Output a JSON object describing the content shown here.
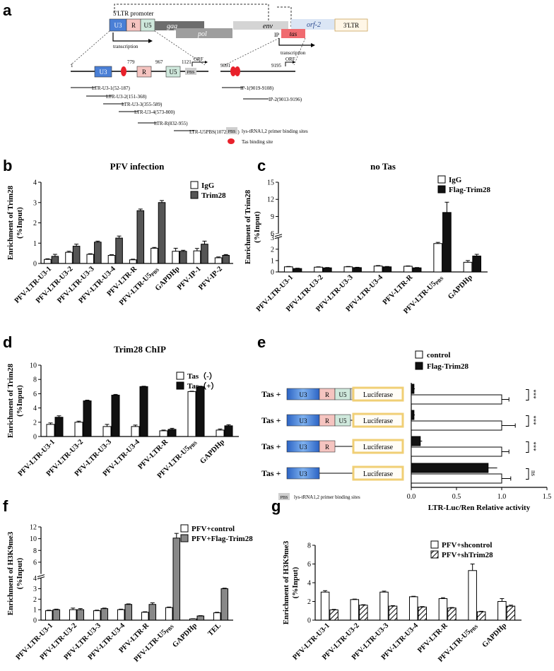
{
  "panel_letters": [
    "a",
    "b",
    "c",
    "d",
    "e",
    "f",
    "g"
  ],
  "schematic": {
    "promoter_label": "5'LTR promoter",
    "genome_segments": [
      "U3",
      "R",
      "U5",
      "gag",
      "pol",
      "env",
      "orf-2",
      "3'LTR",
      "IP",
      "tas"
    ],
    "transcription_label": "transcription",
    "orf_label": "ORF",
    "ltr_positions": [
      "1",
      "779",
      "967",
      "1121"
    ],
    "ip_positions": [
      "9091",
      "9195"
    ],
    "pbs_label": "PBS",
    "fragments": [
      "LTR-U3-1(52-187)",
      "LTR-U3-2(151-368)",
      "LTR-U3-3(355-589)",
      "LTR-U3-4(573-800)",
      "LTR-R(832-955)",
      "LTR-U5PBS(1072-1167)"
    ],
    "ip_fragments": [
      "IP-1(9019-9108)",
      "IP-2(9013-9196)"
    ],
    "legend_pbs": "lys-tRNA1,2 primer binding sites",
    "legend_tas": "Tas binding site",
    "colors": {
      "U3": "#4a7fd6",
      "R": "#f5c4c0",
      "U5": "#cfe8dc",
      "tas_site": "#e8212b",
      "gag": "#6d6d6d",
      "pol": "#9e9e9e",
      "env": "#d4d4d4",
      "tas": "#f06b70",
      "orf2": "#dbe6f5",
      "ltr3": "#fff6e6"
    }
  },
  "chart_data": [
    {
      "panel": "b",
      "type": "bar",
      "title": "PFV infection",
      "ylabel": "Enrichment of Trim28 (%Input)",
      "ylim": [
        0,
        4
      ],
      "yticks": [
        "0",
        "1",
        "2",
        "3",
        "4"
      ],
      "categories": [
        "PFV-LTR-U3-1",
        "PFV-LTR-U3-2",
        "PFV-LTR-U3-3",
        "PFV-LTR-U3-4",
        "PFV-LTR-R",
        "PFV-LTR-U5PBS",
        "GAPDHp",
        "PFV-IP-1",
        "PFV-IP-2"
      ],
      "series": [
        {
          "name": "IgG",
          "color": "#ffffff",
          "values": [
            0.2,
            0.55,
            0.45,
            0.4,
            0.18,
            0.75,
            0.6,
            0.62,
            0.28
          ],
          "errors": [
            0.03,
            0.05,
            0.03,
            0.03,
            0.03,
            0.04,
            0.15,
            0.12,
            0.04
          ]
        },
        {
          "name": "Trim28",
          "color": "#555555",
          "values": [
            0.35,
            0.85,
            1.05,
            1.25,
            2.6,
            3.0,
            0.6,
            0.95,
            0.4
          ],
          "errors": [
            0.1,
            0.1,
            0.05,
            0.1,
            0.08,
            0.1,
            0.05,
            0.15,
            0.04
          ]
        }
      ]
    },
    {
      "panel": "c",
      "type": "bar",
      "title": "no Tas",
      "ylabel": "Enrichment of Trim28 (%Input)",
      "ylim": [
        0,
        15
      ],
      "yticks": [
        "0",
        "1",
        "2",
        "3",
        "6",
        "9",
        "12",
        "15"
      ],
      "categories": [
        "PFV-LTR-U3-1",
        "PFV-LTR-U3-2",
        "PFV-LTR-U3-3",
        "PFV-LTR-U3-4",
        "PFV-LTR-R",
        "PFV-LTR-U5PBS",
        "GAPDHp"
      ],
      "series": [
        {
          "name": "IgG",
          "color": "#ffffff",
          "values": [
            0.45,
            0.42,
            0.45,
            0.52,
            0.5,
            2.5,
            0.85
          ],
          "errors": [
            0.03,
            0.03,
            0.03,
            0.04,
            0.03,
            0.1,
            0.15
          ]
        },
        {
          "name": "Flag-Trim28",
          "color": "#111111",
          "values": [
            0.3,
            0.36,
            0.38,
            0.45,
            0.36,
            9.7,
            1.4
          ],
          "errors": [
            0.03,
            0.03,
            0.03,
            0.03,
            0.03,
            1.8,
            0.15
          ]
        }
      ]
    },
    {
      "panel": "d",
      "type": "bar",
      "title": "Trim28 ChIP",
      "ylabel": "Enrichment of Trim28 (%Input)",
      "ylim": [
        0,
        10
      ],
      "yticks": [
        "0",
        "2",
        "4",
        "6",
        "8",
        "10"
      ],
      "categories": [
        "PFV-LTR-U3-1",
        "PFV-LTR-U3-2",
        "PFV-LTR-U3-3",
        "PFV-LTR-U3-4",
        "PFV-LTR-R",
        "PFV-LTR-U5PBS",
        "GAPDHp"
      ],
      "series": [
        {
          "name": "Tas（-）",
          "color": "#ffffff",
          "values": [
            1.7,
            2.0,
            1.4,
            1.4,
            0.8,
            6.3,
            0.9
          ],
          "errors": [
            0.2,
            0.15,
            0.3,
            0.2,
            0.1,
            0.05,
            0.15
          ]
        },
        {
          "name": "Tas（+）",
          "color": "#111111",
          "values": [
            2.7,
            5.0,
            5.8,
            7.0,
            1.0,
            7.0,
            1.5
          ],
          "errors": [
            0.2,
            0.1,
            0.1,
            0.05,
            0.15,
            0.05,
            0.15
          ]
        }
      ]
    },
    {
      "panel": "e",
      "type": "bar",
      "orientation": "horizontal",
      "xlabel": "LTR-Luc/Ren Relative activity",
      "xlim": [
        0,
        1.5
      ],
      "xticks": [
        "0.0",
        "0.5",
        "1.0",
        "1.5"
      ],
      "row_prefix": "Tas +",
      "reporter_label": "Luciferase",
      "constructs": [
        [
          "U3",
          "R",
          "U5",
          "PBS"
        ],
        [
          "U3",
          "R",
          "U5"
        ],
        [
          "U3",
          "R"
        ],
        [
          "U3"
        ]
      ],
      "series": [
        {
          "name": "control",
          "color": "#ffffff",
          "values": [
            1.0,
            1.0,
            1.0,
            1.0
          ],
          "errors": [
            0.08,
            0.15,
            0.08,
            0.1
          ]
        },
        {
          "name": "Flag-Trim28",
          "color": "#111111",
          "values": [
            0.03,
            0.03,
            0.1,
            0.85
          ],
          "errors": [
            0.01,
            0.01,
            0.02,
            0.1
          ]
        }
      ],
      "significance": [
        "***",
        "***",
        "***",
        "ns"
      ],
      "legend_pbs": "lys-tRNA1,2 primer binding sites"
    },
    {
      "panel": "f",
      "type": "bar",
      "ylabel": "Enrichment of H3K9me3 (%Input)",
      "ylim": [
        0,
        12
      ],
      "yticks": [
        "0",
        "1",
        "2",
        "3",
        "4",
        "6",
        "8",
        "10",
        "12"
      ],
      "categories": [
        "PFV-LTR-U3-1",
        "PFV-LTR-U3-2",
        "PFV-LTR-U3-3",
        "PFV-LTR-U3-4",
        "PFV-LTR-R",
        "PFV-LTR-U5PBS",
        "GAPDHp",
        "TEL"
      ],
      "series": [
        {
          "name": "PFV+control",
          "color": "#ffffff",
          "values": [
            0.9,
            1.0,
            0.9,
            1.0,
            0.75,
            1.2,
            0.12,
            0.7
          ],
          "errors": [
            0.05,
            0.15,
            0.05,
            0.05,
            0.05,
            0.05,
            0.02,
            0.05
          ]
        },
        {
          "name": "PFV+Flag-Trim28",
          "color": "#888888",
          "values": [
            1.0,
            1.0,
            1.1,
            1.5,
            1.5,
            10.1,
            0.4,
            3.0
          ],
          "errors": [
            0.05,
            0.1,
            0.05,
            0.05,
            0.15,
            0.8,
            0.03,
            0.05
          ]
        }
      ]
    },
    {
      "panel": "g",
      "type": "bar",
      "ylabel": "Enrichment of H3K9me3 (%Input)",
      "ylim": [
        0,
        8
      ],
      "yticks": [
        "0",
        "2",
        "4",
        "6",
        "8"
      ],
      "categories": [
        "PFV-LTR-U3-1",
        "PFV-LTR-U3-2",
        "PFV-LTR-U3-3",
        "PFV-LTR-U3-4",
        "PFV-LTR-R",
        "PFV-LTR-U5PBS",
        "GAPDHp"
      ],
      "series": [
        {
          "name": "PFV+shcontrol",
          "color": "#ffffff",
          "values": [
            3.0,
            2.2,
            3.0,
            2.5,
            2.3,
            5.3,
            2.0
          ],
          "errors": [
            0.15,
            0.05,
            0.1,
            0.05,
            0.1,
            0.7,
            0.3
          ]
        },
        {
          "name": "PFV+shTrim28",
          "color": "hatch",
          "values": [
            1.1,
            1.6,
            1.5,
            1.4,
            1.3,
            0.9,
            1.5
          ],
          "errors": [
            0.05,
            0.05,
            0.05,
            0.05,
            0.05,
            0.05,
            0.1
          ]
        }
      ]
    }
  ]
}
